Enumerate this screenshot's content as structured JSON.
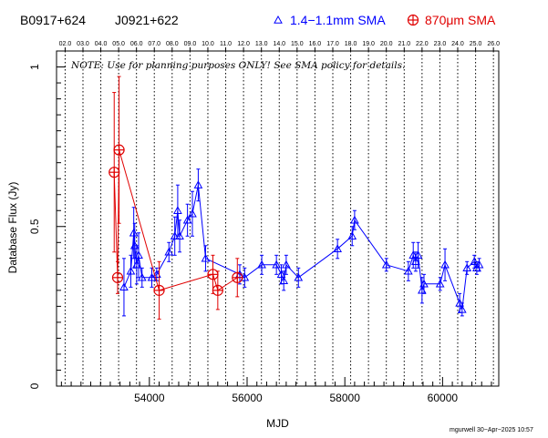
{
  "header": {
    "source_name": "B0917+624",
    "alt_name": "J0921+622",
    "legend_blue_marker": "△",
    "legend_blue_label": "1.4−1.1mm SMA",
    "legend_red_marker": "⊕",
    "legend_red_label": "870μm SMA"
  },
  "note": "NOTE: Use for planning purposes ONLY! See SMA policy for details.",
  "footer": "mgurwell 30−Apr−2025 10:57",
  "colors": {
    "blue": "#0000ff",
    "red": "#e00000",
    "axis": "#000000"
  },
  "chart_data": {
    "type": "scatter",
    "xlabel": "MJD",
    "ylabel": "Database Flux (Jy)",
    "xlim": [
      52100,
      61150
    ],
    "ylim": [
      0,
      1.05
    ],
    "x_ticks": [
      54000,
      56000,
      58000,
      60000
    ],
    "x_tick_labels": [
      "54000",
      "56000",
      "58000",
      "60000"
    ],
    "y_ticks": [
      0,
      0.5,
      1
    ],
    "y_tick_labels": [
      "0",
      "0.5",
      "1"
    ],
    "top_ticks": [
      {
        "label": "02.0",
        "x": 52276
      },
      {
        "label": "03.0",
        "x": 52641
      },
      {
        "label": "04.0",
        "x": 53006
      },
      {
        "label": "05.0",
        "x": 53371
      },
      {
        "label": "06.0",
        "x": 53736
      },
      {
        "label": "07.0",
        "x": 54101
      },
      {
        "label": "08.0",
        "x": 54466
      },
      {
        "label": "09.0",
        "x": 54832
      },
      {
        "label": "10.0",
        "x": 55197
      },
      {
        "label": "11.0",
        "x": 55562
      },
      {
        "label": "12.0",
        "x": 55927
      },
      {
        "label": "13.0",
        "x": 56293
      },
      {
        "label": "14.0",
        "x": 56658
      },
      {
        "label": "15.0",
        "x": 57023
      },
      {
        "label": "16.0",
        "x": 57388
      },
      {
        "label": "17.0",
        "x": 57754
      },
      {
        "label": "18.0",
        "x": 58119
      },
      {
        "label": "19.0",
        "x": 58484
      },
      {
        "label": "20.0",
        "x": 58849
      },
      {
        "label": "21.0",
        "x": 59215
      },
      {
        "label": "22.0",
        "x": 59580
      },
      {
        "label": "23.0",
        "x": 59945
      },
      {
        "label": "24.0",
        "x": 60310
      },
      {
        "label": "25.0",
        "x": 60676
      },
      {
        "label": "26.0",
        "x": 61041
      }
    ],
    "series": [
      {
        "name": "1.4−1.1mm SMA",
        "color": "#0000ff",
        "marker": "triangle",
        "points": [
          {
            "x": 53480,
            "y": 0.31,
            "err": 0.09
          },
          {
            "x": 53620,
            "y": 0.36,
            "err": 0.05
          },
          {
            "x": 53680,
            "y": 0.48,
            "err": 0.08
          },
          {
            "x": 53700,
            "y": 0.44,
            "err": 0.07
          },
          {
            "x": 53740,
            "y": 0.38,
            "err": 0.06
          },
          {
            "x": 53780,
            "y": 0.41,
            "err": 0.07
          },
          {
            "x": 53850,
            "y": 0.34,
            "err": 0.03
          },
          {
            "x": 54050,
            "y": 0.34,
            "err": 0.03
          },
          {
            "x": 54150,
            "y": 0.35,
            "err": 0.02
          },
          {
            "x": 54400,
            "y": 0.42,
            "err": 0.03
          },
          {
            "x": 54520,
            "y": 0.47,
            "err": 0.06
          },
          {
            "x": 54580,
            "y": 0.55,
            "err": 0.08
          },
          {
            "x": 54620,
            "y": 0.47,
            "err": 0.05
          },
          {
            "x": 54780,
            "y": 0.52,
            "err": 0.05
          },
          {
            "x": 54880,
            "y": 0.54,
            "err": 0.07
          },
          {
            "x": 55000,
            "y": 0.63,
            "err": 0.05
          },
          {
            "x": 55150,
            "y": 0.4,
            "err": 0.04
          },
          {
            "x": 55850,
            "y": 0.35,
            "err": 0.03
          },
          {
            "x": 55950,
            "y": 0.34,
            "err": 0.03
          },
          {
            "x": 56300,
            "y": 0.38,
            "err": 0.03
          },
          {
            "x": 56600,
            "y": 0.38,
            "err": 0.03
          },
          {
            "x": 56700,
            "y": 0.35,
            "err": 0.03
          },
          {
            "x": 56750,
            "y": 0.33,
            "err": 0.03
          },
          {
            "x": 56800,
            "y": 0.38,
            "err": 0.03
          },
          {
            "x": 57050,
            "y": 0.34,
            "err": 0.03
          },
          {
            "x": 57850,
            "y": 0.43,
            "err": 0.03
          },
          {
            "x": 58150,
            "y": 0.47,
            "err": 0.03
          },
          {
            "x": 58200,
            "y": 0.52,
            "err": 0.03
          },
          {
            "x": 58850,
            "y": 0.38,
            "err": 0.02
          },
          {
            "x": 59300,
            "y": 0.36,
            "err": 0.03
          },
          {
            "x": 59400,
            "y": 0.41,
            "err": 0.04
          },
          {
            "x": 59450,
            "y": 0.39,
            "err": 0.03
          },
          {
            "x": 59500,
            "y": 0.41,
            "err": 0.04
          },
          {
            "x": 59580,
            "y": 0.3,
            "err": 0.04
          },
          {
            "x": 59620,
            "y": 0.32,
            "err": 0.03
          },
          {
            "x": 59950,
            "y": 0.32,
            "err": 0.02
          },
          {
            "x": 60050,
            "y": 0.38,
            "err": 0.05
          },
          {
            "x": 60350,
            "y": 0.26,
            "err": 0.03
          },
          {
            "x": 60400,
            "y": 0.24,
            "err": 0.02
          },
          {
            "x": 60500,
            "y": 0.37,
            "err": 0.02
          },
          {
            "x": 60650,
            "y": 0.39,
            "err": 0.02
          },
          {
            "x": 60700,
            "y": 0.37,
            "err": 0.02
          },
          {
            "x": 60750,
            "y": 0.38,
            "err": 0.02
          }
        ]
      },
      {
        "name": "870μm SMA",
        "color": "#e00000",
        "marker": "circle-cross",
        "points": [
          {
            "x": 53280,
            "y": 0.67,
            "err": 0.25
          },
          {
            "x": 53350,
            "y": 0.34,
            "err": 0.05
          },
          {
            "x": 53380,
            "y": 0.74,
            "err": 0.23
          },
          {
            "x": 54200,
            "y": 0.3,
            "err": 0.09
          },
          {
            "x": 55300,
            "y": 0.35,
            "err": 0.06
          },
          {
            "x": 55400,
            "y": 0.3,
            "err": 0.06
          },
          {
            "x": 55800,
            "y": 0.34,
            "err": 0.06
          }
        ]
      }
    ]
  }
}
